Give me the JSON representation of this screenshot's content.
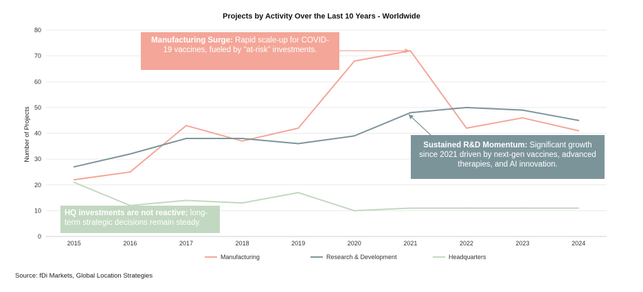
{
  "chart_data": {
    "type": "line",
    "title": "Projects by Activity Over the Last 10 Years - Worldwide",
    "ylabel": "Number of Projects",
    "xlabel": "",
    "categories": [
      "2015",
      "2016",
      "2017",
      "2018",
      "2019",
      "2020",
      "2021",
      "2022",
      "2023",
      "2024"
    ],
    "ylim": [
      0,
      80
    ],
    "yticks": [
      0,
      10,
      20,
      30,
      40,
      50,
      60,
      70,
      80
    ],
    "grid": true,
    "legend_position": "bottom",
    "series": [
      {
        "name": "Manufacturing",
        "color": "#f4a698",
        "values": [
          22,
          25,
          43,
          37,
          42,
          68,
          72,
          42,
          46,
          41
        ]
      },
      {
        "name": "Research & Development",
        "color": "#7b949a",
        "values": [
          27,
          32,
          38,
          38,
          36,
          39,
          48,
          50,
          49,
          45
        ]
      },
      {
        "name": "Headquarters",
        "color": "#c2d8c0",
        "values": [
          21,
          12,
          14,
          13,
          17,
          10,
          11,
          11,
          11,
          11
        ]
      }
    ],
    "annotations": [
      {
        "series": "Manufacturing",
        "bold": "Manufacturing Surge:",
        "text": " Rapid scale-up for COVID-19 vaccines, fueled by “at-risk” investments.",
        "color": "#f4a698",
        "target_x": "2021",
        "target_y": 72
      },
      {
        "series": "Research & Development",
        "bold": "Sustained R&D Momentum:",
        "text": " Significant growth since 2021 driven by next-gen vaccines, advanced therapies, and AI innovation.",
        "color": "#7b949a",
        "target_x": "2021",
        "target_y": 48
      },
      {
        "series": "Headquarters",
        "bold": "HQ investments are not reactive;",
        "text": " long-term strategic decisions remain steady.",
        "color": "#c2d8c0"
      }
    ]
  },
  "source": "Source: fDi Markets, Global Location Strategies"
}
